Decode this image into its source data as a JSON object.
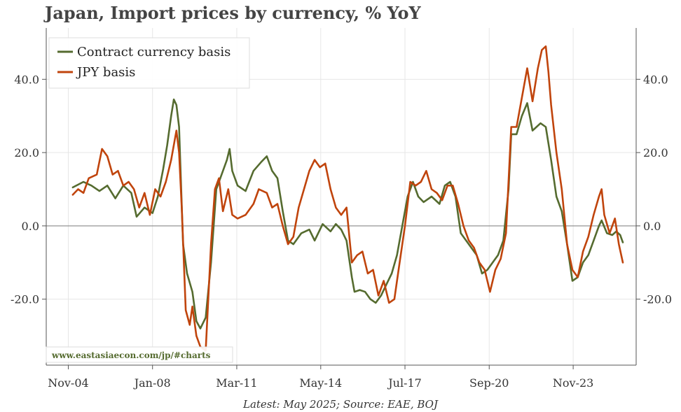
{
  "chart_data": {
    "type": "line",
    "title": "Japan, Import prices by currency, % YoY",
    "caption": "Latest: May 2025; Source: EAE, BOJ",
    "watermark": "www.eastasiaecon.com/jp/#charts",
    "x_tick_labels": [
      "Nov-04",
      "Jan-08",
      "Mar-11",
      "May-14",
      "Jul-17",
      "Sep-20",
      "Nov-23"
    ],
    "x_ticks": [
      2004.83,
      2008.0,
      2011.17,
      2014.33,
      2017.5,
      2020.67,
      2023.83
    ],
    "xlim": [
      2004.0,
      2026.2
    ],
    "ylim": [
      -38,
      54
    ],
    "y_ticks": [
      -20,
      0,
      20,
      40
    ],
    "y_tick_labels": [
      "-20.0",
      "0.0",
      "20.0",
      "40.0"
    ],
    "grid": true,
    "legend_position": "top-left",
    "series": [
      {
        "name": "Contract currency basis",
        "color": "#556b2f",
        "points": [
          [
            2005.0,
            10.5
          ],
          [
            2005.4,
            12
          ],
          [
            2005.7,
            11
          ],
          [
            2006.0,
            9.5
          ],
          [
            2006.3,
            11
          ],
          [
            2006.6,
            7.5
          ],
          [
            2006.9,
            11
          ],
          [
            2007.2,
            9
          ],
          [
            2007.4,
            2.5
          ],
          [
            2007.7,
            5
          ],
          [
            2008.0,
            3.5
          ],
          [
            2008.2,
            8
          ],
          [
            2008.4,
            15.5
          ],
          [
            2008.55,
            22
          ],
          [
            2008.7,
            30
          ],
          [
            2008.8,
            34.5
          ],
          [
            2008.9,
            33
          ],
          [
            2009.0,
            27
          ],
          [
            2009.15,
            -5
          ],
          [
            2009.3,
            -13
          ],
          [
            2009.5,
            -18
          ],
          [
            2009.65,
            -26
          ],
          [
            2009.8,
            -28
          ],
          [
            2010.0,
            -25
          ],
          [
            2010.2,
            -10
          ],
          [
            2010.4,
            10
          ],
          [
            2010.6,
            14
          ],
          [
            2010.8,
            18
          ],
          [
            2010.9,
            21
          ],
          [
            2011.0,
            15
          ],
          [
            2011.2,
            11
          ],
          [
            2011.5,
            9.5
          ],
          [
            2011.8,
            15
          ],
          [
            2012.1,
            17.5
          ],
          [
            2012.3,
            19
          ],
          [
            2012.5,
            15
          ],
          [
            2012.7,
            13
          ],
          [
            2012.9,
            4
          ],
          [
            2013.1,
            -4
          ],
          [
            2013.3,
            -5
          ],
          [
            2013.6,
            -2
          ],
          [
            2013.9,
            -1
          ],
          [
            2014.1,
            -4
          ],
          [
            2014.4,
            0.5
          ],
          [
            2014.7,
            -1.5
          ],
          [
            2014.9,
            0.5
          ],
          [
            2015.1,
            -1
          ],
          [
            2015.3,
            -4
          ],
          [
            2015.5,
            -14
          ],
          [
            2015.6,
            -18
          ],
          [
            2015.8,
            -17.5
          ],
          [
            2016.0,
            -18
          ],
          [
            2016.2,
            -20
          ],
          [
            2016.4,
            -21
          ],
          [
            2016.6,
            -19
          ],
          [
            2016.8,
            -16
          ],
          [
            2017.0,
            -13
          ],
          [
            2017.2,
            -8
          ],
          [
            2017.4,
            0
          ],
          [
            2017.6,
            8
          ],
          [
            2017.8,
            12
          ],
          [
            2018.0,
            8
          ],
          [
            2018.2,
            6.5
          ],
          [
            2018.5,
            8
          ],
          [
            2018.8,
            6
          ],
          [
            2019.0,
            11
          ],
          [
            2019.2,
            12
          ],
          [
            2019.4,
            8
          ],
          [
            2019.6,
            -2
          ],
          [
            2019.8,
            -4
          ],
          [
            2020.0,
            -6
          ],
          [
            2020.2,
            -8
          ],
          [
            2020.4,
            -13
          ],
          [
            2020.6,
            -12
          ],
          [
            2020.8,
            -10
          ],
          [
            2021.0,
            -8
          ],
          [
            2021.2,
            -4
          ],
          [
            2021.4,
            10
          ],
          [
            2021.5,
            25
          ],
          [
            2021.7,
            25
          ],
          [
            2021.9,
            30
          ],
          [
            2022.1,
            33.5
          ],
          [
            2022.3,
            26
          ],
          [
            2022.6,
            28
          ],
          [
            2022.8,
            27
          ],
          [
            2023.0,
            18
          ],
          [
            2023.2,
            8
          ],
          [
            2023.4,
            4
          ],
          [
            2023.6,
            -5
          ],
          [
            2023.8,
            -15
          ],
          [
            2024.0,
            -14
          ],
          [
            2024.2,
            -10
          ],
          [
            2024.4,
            -8
          ],
          [
            2024.6,
            -4
          ],
          [
            2024.8,
            0
          ],
          [
            2024.9,
            1.5
          ],
          [
            2025.1,
            -2
          ],
          [
            2025.3,
            -2.5
          ],
          [
            2025.45,
            -1.5
          ],
          [
            2025.6,
            -2.5
          ],
          [
            2025.7,
            -4.5
          ]
        ]
      },
      {
        "name": "JPY basis",
        "color": "#c0440c",
        "points": [
          [
            2005.0,
            8.5
          ],
          [
            2005.2,
            10
          ],
          [
            2005.4,
            9
          ],
          [
            2005.6,
            13
          ],
          [
            2005.9,
            14
          ],
          [
            2006.1,
            21
          ],
          [
            2006.3,
            19
          ],
          [
            2006.5,
            14
          ],
          [
            2006.7,
            15
          ],
          [
            2006.9,
            11
          ],
          [
            2007.1,
            12
          ],
          [
            2007.3,
            10
          ],
          [
            2007.5,
            5
          ],
          [
            2007.7,
            9
          ],
          [
            2007.9,
            3
          ],
          [
            2008.1,
            10
          ],
          [
            2008.3,
            8
          ],
          [
            2008.5,
            12
          ],
          [
            2008.7,
            18
          ],
          [
            2008.9,
            26
          ],
          [
            2009.0,
            20
          ],
          [
            2009.1,
            5
          ],
          [
            2009.25,
            -23
          ],
          [
            2009.4,
            -27
          ],
          [
            2009.5,
            -22
          ],
          [
            2009.65,
            -30
          ],
          [
            2009.8,
            -33
          ],
          [
            2010.0,
            -34
          ],
          [
            2010.2,
            -5
          ],
          [
            2010.35,
            10
          ],
          [
            2010.5,
            13
          ],
          [
            2010.65,
            4
          ],
          [
            2010.85,
            10
          ],
          [
            2011.0,
            3
          ],
          [
            2011.2,
            2
          ],
          [
            2011.5,
            3
          ],
          [
            2011.8,
            6
          ],
          [
            2012.0,
            10
          ],
          [
            2012.3,
            9
          ],
          [
            2012.5,
            5
          ],
          [
            2012.7,
            6
          ],
          [
            2012.9,
            0
          ],
          [
            2013.1,
            -5
          ],
          [
            2013.3,
            -3
          ],
          [
            2013.5,
            5
          ],
          [
            2013.7,
            10
          ],
          [
            2013.9,
            15
          ],
          [
            2014.1,
            18
          ],
          [
            2014.3,
            16
          ],
          [
            2014.5,
            17
          ],
          [
            2014.7,
            10
          ],
          [
            2014.9,
            5
          ],
          [
            2015.1,
            3
          ],
          [
            2015.3,
            5
          ],
          [
            2015.5,
            -10
          ],
          [
            2015.7,
            -8
          ],
          [
            2015.9,
            -7
          ],
          [
            2016.1,
            -13
          ],
          [
            2016.3,
            -12
          ],
          [
            2016.5,
            -19
          ],
          [
            2016.7,
            -15
          ],
          [
            2016.9,
            -21
          ],
          [
            2017.1,
            -20
          ],
          [
            2017.3,
            -10
          ],
          [
            2017.5,
            0
          ],
          [
            2017.7,
            12
          ],
          [
            2017.9,
            11
          ],
          [
            2018.1,
            12
          ],
          [
            2018.3,
            15
          ],
          [
            2018.5,
            10
          ],
          [
            2018.7,
            9
          ],
          [
            2018.9,
            7
          ],
          [
            2019.1,
            11
          ],
          [
            2019.3,
            11
          ],
          [
            2019.5,
            6
          ],
          [
            2019.7,
            0
          ],
          [
            2019.9,
            -4
          ],
          [
            2020.1,
            -6
          ],
          [
            2020.3,
            -10
          ],
          [
            2020.5,
            -12
          ],
          [
            2020.7,
            -18
          ],
          [
            2020.9,
            -12
          ],
          [
            2021.1,
            -9
          ],
          [
            2021.3,
            -2
          ],
          [
            2021.5,
            27
          ],
          [
            2021.7,
            27
          ],
          [
            2021.9,
            35
          ],
          [
            2022.1,
            43
          ],
          [
            2022.3,
            34
          ],
          [
            2022.5,
            43
          ],
          [
            2022.65,
            48
          ],
          [
            2022.8,
            49
          ],
          [
            2022.9,
            42
          ],
          [
            2023.0,
            33
          ],
          [
            2023.2,
            20
          ],
          [
            2023.4,
            10
          ],
          [
            2023.6,
            -5
          ],
          [
            2023.8,
            -12
          ],
          [
            2024.0,
            -14
          ],
          [
            2024.2,
            -7
          ],
          [
            2024.4,
            -3
          ],
          [
            2024.6,
            3
          ],
          [
            2024.8,
            8
          ],
          [
            2024.9,
            10
          ],
          [
            2025.0,
            3
          ],
          [
            2025.2,
            -2
          ],
          [
            2025.4,
            2
          ],
          [
            2025.55,
            -5
          ],
          [
            2025.7,
            -10
          ]
        ]
      }
    ]
  }
}
